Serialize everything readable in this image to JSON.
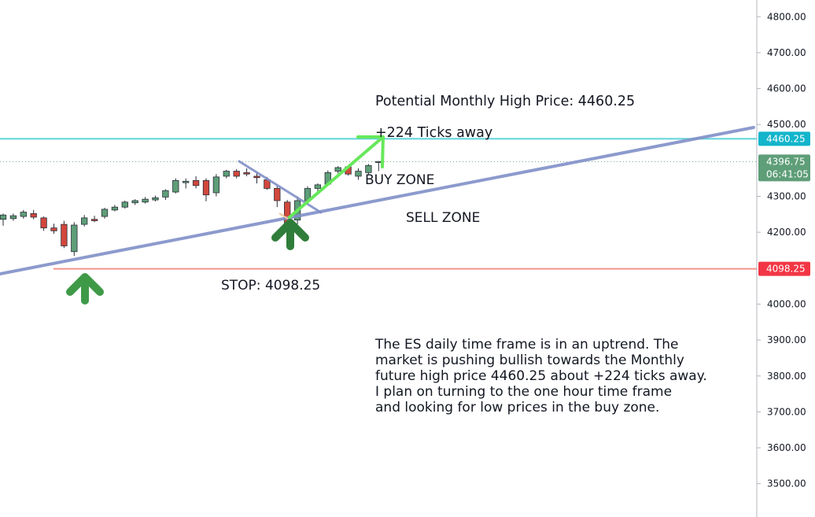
{
  "chart_data": {
    "type": "candlestick",
    "instrument": "ES",
    "y_axis": {
      "ticks": [
        "3500.00",
        "3600.00",
        "3700.00",
        "3800.00",
        "3900.00",
        "4000.00",
        "4200.00",
        "4300.00",
        "4500.00",
        "4600.00",
        "4700.00",
        "4800.00"
      ],
      "ylim": [
        3485,
        4840
      ]
    },
    "candles": [
      {
        "o": 4236,
        "h": 4252,
        "l": 4218,
        "c": 4248
      },
      {
        "o": 4238,
        "h": 4252,
        "l": 4232,
        "c": 4246
      },
      {
        "o": 4244,
        "h": 4262,
        "l": 4238,
        "c": 4256
      },
      {
        "o": 4252,
        "h": 4262,
        "l": 4236,
        "c": 4242
      },
      {
        "o": 4240,
        "h": 4244,
        "l": 4204,
        "c": 4212
      },
      {
        "o": 4212,
        "h": 4224,
        "l": 4196,
        "c": 4204
      },
      {
        "o": 4222,
        "h": 4232,
        "l": 4156,
        "c": 4162
      },
      {
        "o": 4146,
        "h": 4228,
        "l": 4134,
        "c": 4220
      },
      {
        "o": 4222,
        "h": 4248,
        "l": 4216,
        "c": 4240
      },
      {
        "o": 4236,
        "h": 4246,
        "l": 4228,
        "c": 4232
      },
      {
        "o": 4244,
        "h": 4268,
        "l": 4238,
        "c": 4264
      },
      {
        "o": 4262,
        "h": 4276,
        "l": 4258,
        "c": 4270
      },
      {
        "o": 4270,
        "h": 4288,
        "l": 4266,
        "c": 4284
      },
      {
        "o": 4282,
        "h": 4292,
        "l": 4276,
        "c": 4288
      },
      {
        "o": 4284,
        "h": 4298,
        "l": 4280,
        "c": 4292
      },
      {
        "o": 4290,
        "h": 4302,
        "l": 4286,
        "c": 4296
      },
      {
        "o": 4298,
        "h": 4320,
        "l": 4290,
        "c": 4316
      },
      {
        "o": 4312,
        "h": 4350,
        "l": 4308,
        "c": 4344
      },
      {
        "o": 4338,
        "h": 4350,
        "l": 4322,
        "c": 4342
      },
      {
        "o": 4344,
        "h": 4356,
        "l": 4322,
        "c": 4330
      },
      {
        "o": 4344,
        "h": 4350,
        "l": 4286,
        "c": 4304
      },
      {
        "o": 4310,
        "h": 4362,
        "l": 4300,
        "c": 4354
      },
      {
        "o": 4356,
        "h": 4374,
        "l": 4350,
        "c": 4370
      },
      {
        "o": 4370,
        "h": 4376,
        "l": 4350,
        "c": 4356
      },
      {
        "o": 4366,
        "h": 4378,
        "l": 4356,
        "c": 4362
      },
      {
        "o": 4356,
        "h": 4366,
        "l": 4336,
        "c": 4352
      },
      {
        "o": 4346,
        "h": 4354,
        "l": 4318,
        "c": 4322
      },
      {
        "o": 4322,
        "h": 4330,
        "l": 4270,
        "c": 4288
      },
      {
        "o": 4284,
        "h": 4290,
        "l": 4216,
        "c": 4220
      },
      {
        "o": 4234,
        "h": 4300,
        "l": 4222,
        "c": 4288
      },
      {
        "o": 4288,
        "h": 4328,
        "l": 4284,
        "c": 4322
      },
      {
        "o": 4322,
        "h": 4336,
        "l": 4314,
        "c": 4332
      },
      {
        "o": 4334,
        "h": 4372,
        "l": 4330,
        "c": 4366
      },
      {
        "o": 4370,
        "h": 4384,
        "l": 4364,
        "c": 4380
      },
      {
        "o": 4382,
        "h": 4386,
        "l": 4358,
        "c": 4362
      },
      {
        "o": 4356,
        "h": 4378,
        "l": 4346,
        "c": 4370
      },
      {
        "o": 4366,
        "h": 4390,
        "l": 4360,
        "c": 4386
      },
      {
        "o": 4394,
        "h": 4398,
        "l": 4370,
        "c": 4397
      }
    ],
    "levels": [
      {
        "name": "Potential Monthly High",
        "price": 4460.25,
        "label": "4460.25",
        "color": "#5ed3db",
        "tag_color": "#12b5cb"
      },
      {
        "name": "Stop",
        "price": 4098.25,
        "label": "4098.25",
        "color": "#f3958a",
        "tag_color": "#f23645"
      },
      {
        "name": "Last price",
        "price": 4396.75,
        "label": "4396.75",
        "countdown": "06:41:05",
        "color": "#6aa684",
        "tag_color": "#5e9e78"
      }
    ],
    "colors": {
      "up": "#5e9e78",
      "down": "#d2473c",
      "trendline": "#8090c8",
      "target_arrow": "#66e85a",
      "buy_arrow": "#3f9a48",
      "projection": "#f8c898"
    }
  },
  "annotations": {
    "monthly_high": "Potential Monthly High Price: 4460.25",
    "ticks_away": "+224 Ticks away",
    "buy_zone": "BUY ZONE",
    "sell_zone": "SELL ZONE",
    "stop": "STOP: 4098.25",
    "description": [
      "The ES daily time frame is in an uptrend. The",
      "market is pushing bullish towards the Monthly",
      "future high price 4460.25 about +224 ticks away.",
      "I plan on turning to the one hour time frame",
      "and looking for low prices in the buy zone."
    ]
  },
  "icons": {
    "buy_arrow": "up-arrow-icon",
    "target_arrow": "diagonal-arrow-icon"
  }
}
